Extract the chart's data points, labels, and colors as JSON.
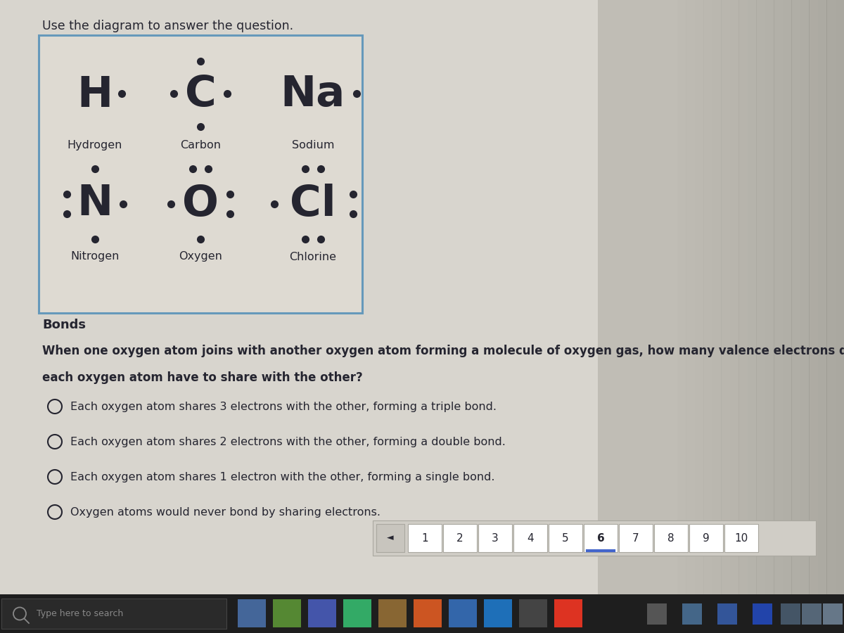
{
  "bg_color": "#b8b4ac",
  "content_bg": "#d8d5ce",
  "page_bg": "#e0ddd6",
  "box_bg": "#dedad2",
  "box_border": "#6699bb",
  "title": "Use the diagram to answer the question.",
  "bonds_label": "Bonds",
  "question_line1": "When one oxygen atom joins with another oxygen atom forming a molecule of oxygen gas, how many valence electrons does",
  "question_line2": "each oxygen atom have to share with the other?",
  "choices": [
    "Each oxygen atom shares 3 electrons with the other, forming a triple bond.",
    "Each oxygen atom shares 2 electrons with the other, forming a double bond.",
    "Each oxygen atom shares 1 electron with the other, forming a single bond.",
    "Oxygen atoms would never bond by sharing electrons."
  ],
  "nav_numbers": [
    "1",
    "2",
    "3",
    "4",
    "5",
    "6",
    "7",
    "8",
    "9",
    "10"
  ],
  "nav_active": "6",
  "taskbar_text": "Type here to search",
  "text_color": "#252530",
  "dark_color": "#252530",
  "right_fade_color": "#9a9890",
  "taskbar_color": "#1e1e1e"
}
